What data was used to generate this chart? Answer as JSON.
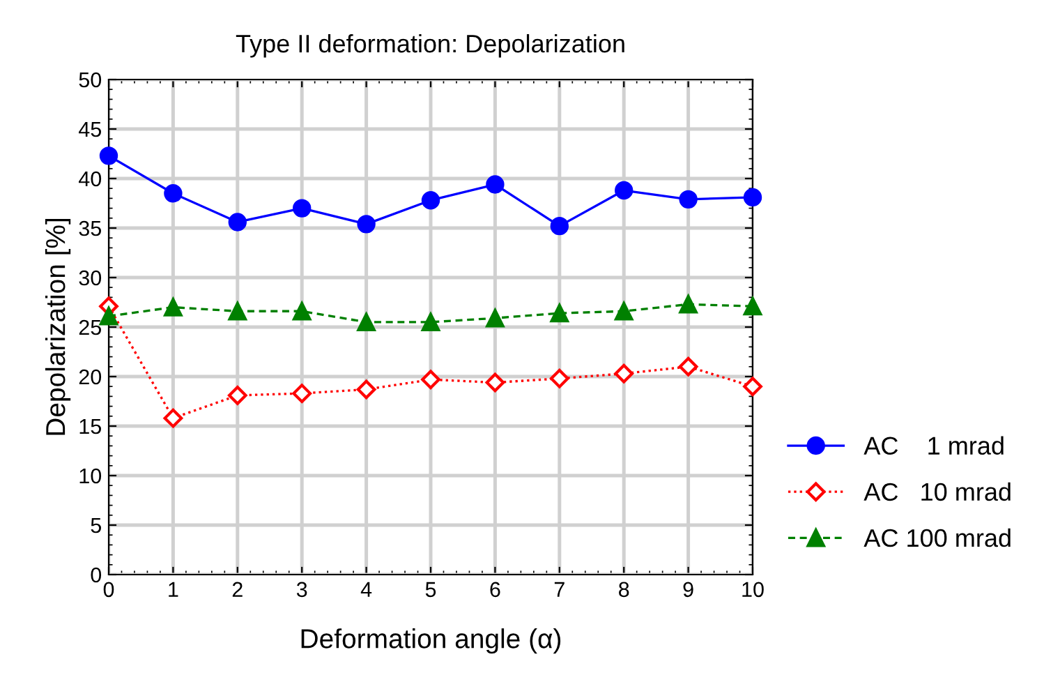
{
  "chart_data": {
    "type": "line",
    "title": "Type II deformation: Depolarization",
    "xlabel": "Deformation angle (α)",
    "ylabel": "Depolarization [%]",
    "x": [
      0,
      1,
      2,
      3,
      4,
      5,
      6,
      7,
      8,
      9,
      10
    ],
    "series": [
      {
        "name": "AC    1 mrad",
        "color": "#0000ff",
        "marker": "circle",
        "line_style": "solid",
        "values": [
          42.3,
          38.5,
          35.6,
          37.0,
          35.4,
          37.8,
          39.4,
          35.2,
          38.8,
          37.9,
          38.1
        ]
      },
      {
        "name": "AC   10 mrad",
        "color": "#ff0000",
        "marker": "diamond",
        "line_style": "dotted",
        "values": [
          27.1,
          15.8,
          18.1,
          18.3,
          18.7,
          19.7,
          19.4,
          19.8,
          20.3,
          21.0,
          19.0
        ]
      },
      {
        "name": "AC 100 mrad",
        "color": "#008000",
        "marker": "triangle",
        "line_style": "dashed",
        "values": [
          26.1,
          27.0,
          26.6,
          26.6,
          25.5,
          25.5,
          25.9,
          26.4,
          26.6,
          27.3,
          27.1
        ]
      }
    ],
    "xlim": [
      0,
      10
    ],
    "xticks": [
      0,
      1,
      2,
      3,
      4,
      5,
      6,
      7,
      8,
      9,
      10
    ],
    "ylim": [
      0,
      50
    ],
    "yticks": [
      0,
      5,
      10,
      15,
      20,
      25,
      30,
      35,
      40,
      45,
      50
    ],
    "grid": true,
    "legend": "bottom right"
  }
}
